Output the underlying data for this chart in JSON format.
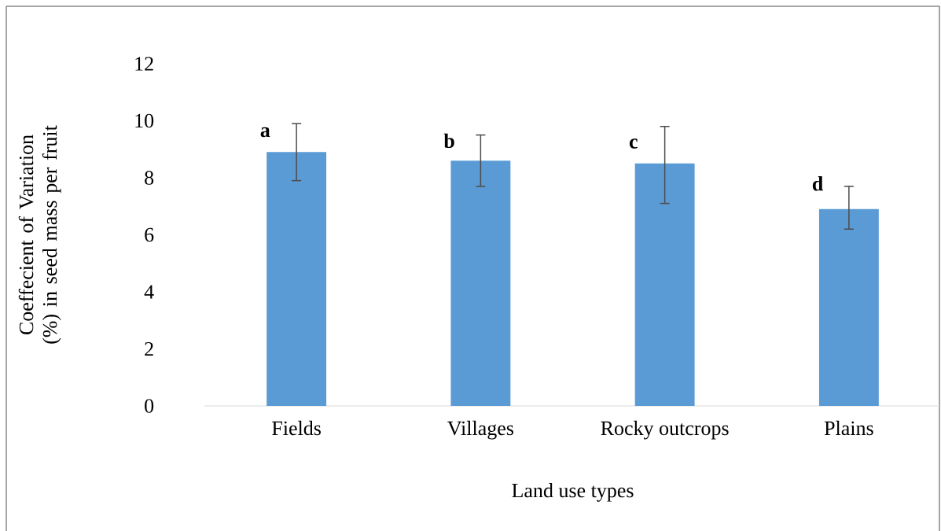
{
  "chart_data": {
    "type": "bar",
    "xlabel": "Land use types",
    "ylabel": "Coeffecient of Variation (%) in seed mass per fruit",
    "categories": [
      "Fields",
      "Villages",
      "Rocky outcrops",
      "Plains"
    ],
    "values": [
      8.9,
      8.6,
      8.5,
      6.9
    ],
    "errors": [
      [
        7.9,
        9.9
      ],
      [
        7.7,
        9.5
      ],
      [
        7.1,
        9.8
      ],
      [
        6.2,
        7.7
      ]
    ],
    "color": "#5b9bd5",
    "ylim": [
      0,
      12
    ],
    "yticks": [
      0,
      2,
      4,
      6,
      8,
      10,
      12
    ],
    "annotations": [
      {
        "text": "a",
        "x": "Fields",
        "y": 9.6
      },
      {
        "text": "b",
        "x": "Villages",
        "y": 9.3
      },
      {
        "text": "c",
        "x": "Rocky outcrops",
        "y": 9.2
      },
      {
        "text": "d",
        "x": "Plains",
        "y": 7.8
      }
    ]
  }
}
